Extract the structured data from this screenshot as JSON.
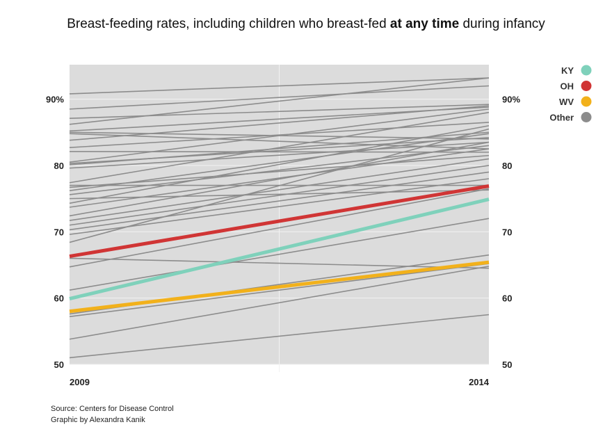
{
  "chart_data": {
    "type": "line",
    "title_parts": [
      "Breast-feeding rates, including children who breast-fed ",
      "at any time",
      " during infancy"
    ],
    "x": [
      "2009",
      "2014"
    ],
    "ylim": [
      50,
      95.2
    ],
    "yticks": [
      "50",
      "60",
      "70",
      "80",
      "90%"
    ],
    "ytick_values": [
      50,
      60,
      70,
      80,
      90
    ],
    "grid": true,
    "legend_position": "top-right",
    "series": [
      {
        "name": "KY",
        "color": "#7fd1bb",
        "values": [
          59.9,
          74.9
        ]
      },
      {
        "name": "OH",
        "color": "#d03535",
        "values": [
          66.3,
          76.9
        ]
      },
      {
        "name": "WV",
        "color": "#f2b11b",
        "values": [
          58.0,
          65.4
        ]
      },
      {
        "name": "Other",
        "color": "#8c8c8c",
        "lines": [
          [
            90.8,
            93.2
          ],
          [
            88.5,
            92.0
          ],
          [
            87.1,
            89.2
          ],
          [
            86.2,
            93.2
          ],
          [
            85.2,
            88.8
          ],
          [
            85.0,
            84.0
          ],
          [
            84.8,
            82.5
          ],
          [
            83.8,
            89.0
          ],
          [
            82.7,
            86.5
          ],
          [
            82.1,
            82.0
          ],
          [
            80.5,
            88.5
          ],
          [
            80.1,
            85.0
          ],
          [
            79.6,
            83.5
          ],
          [
            80.3,
            84.2
          ],
          [
            77.4,
            88.0
          ],
          [
            76.7,
            81.5
          ],
          [
            77.0,
            77.0
          ],
          [
            76.2,
            84.8
          ],
          [
            75.6,
            83.0
          ],
          [
            75.0,
            76.3
          ],
          [
            74.3,
            86.0
          ],
          [
            73.7,
            82.5
          ],
          [
            72.4,
            83.5
          ],
          [
            71.7,
            81.0
          ],
          [
            71.0,
            80.0
          ],
          [
            70.3,
            79.0
          ],
          [
            69.6,
            78.0
          ],
          [
            68.4,
            85.5
          ],
          [
            64.7,
            76.5
          ],
          [
            66.0,
            64.5
          ],
          [
            61.2,
            72.0
          ],
          [
            57.6,
            66.5
          ],
          [
            57.2,
            65.2
          ],
          [
            53.8,
            64.8
          ],
          [
            51.0,
            57.5
          ]
        ]
      }
    ]
  },
  "footer": {
    "source": "Source: Centers for Disease Control",
    "credit": "Graphic by Alexandra Kanik"
  }
}
